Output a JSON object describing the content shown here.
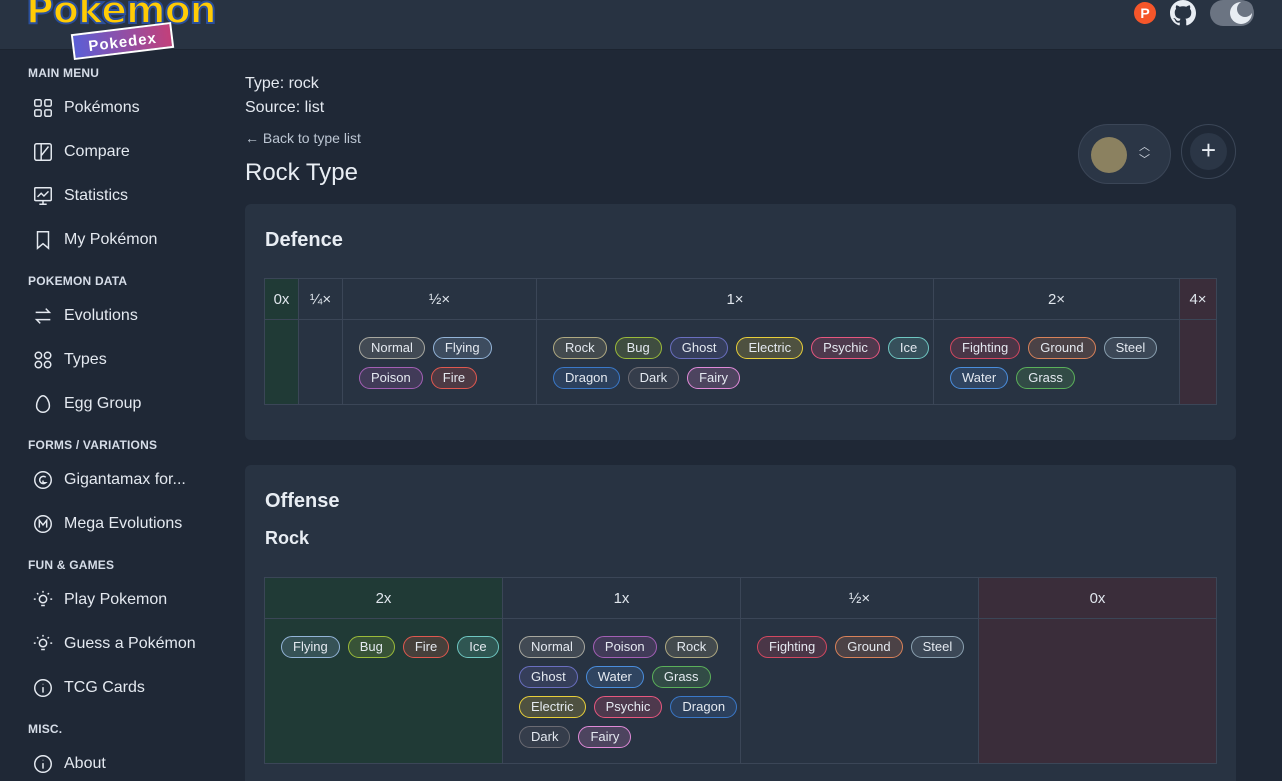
{
  "header": {
    "logo_title": "Pokémon",
    "logo_subtitle": "Pokedex",
    "badge_letter": "P",
    "icons": [
      "patreon-icon",
      "github-icon",
      "theme-toggle"
    ]
  },
  "sidebar": {
    "sections": [
      {
        "label": "MAIN MENU",
        "items": [
          {
            "label": "Pokémons",
            "icon": "grid-icon"
          },
          {
            "label": "Compare",
            "icon": "compare-icon"
          },
          {
            "label": "Statistics",
            "icon": "chart-icon"
          },
          {
            "label": "My Pokémon",
            "icon": "bookmark-icon"
          }
        ]
      },
      {
        "label": "POKEMON DATA",
        "items": [
          {
            "label": "Evolutions",
            "icon": "arrows-icon"
          },
          {
            "label": "Types",
            "icon": "types-icon"
          },
          {
            "label": "Egg Group",
            "icon": "egg-icon"
          }
        ]
      },
      {
        "label": "FORMS / VARIATIONS",
        "items": [
          {
            "label": "Gigantamax for...",
            "icon": "g-icon"
          },
          {
            "label": "Mega Evolutions",
            "icon": "m-icon"
          }
        ]
      },
      {
        "label": "FUN & GAMES",
        "items": [
          {
            "label": "Play Pokemon",
            "icon": "bulb-icon"
          },
          {
            "label": "Guess a Pokémon",
            "icon": "bulb-icon"
          },
          {
            "label": "TCG Cards",
            "icon": "info-icon"
          }
        ]
      },
      {
        "label": "MISC.",
        "items": [
          {
            "label": "About",
            "icon": "info-icon"
          }
        ]
      }
    ]
  },
  "page": {
    "type_line": "Type: rock",
    "source_line": "Source: list",
    "back_link": "← Back to type list",
    "title": "Rock Type",
    "add_label": "+"
  },
  "defence": {
    "title": "Defence",
    "columns": [
      {
        "header": "0x",
        "chips": []
      },
      {
        "header": "¼×",
        "chips": []
      },
      {
        "header": "½×",
        "chips": [
          "Normal",
          "Flying",
          "Poison",
          "Fire"
        ]
      },
      {
        "header": "1×",
        "chips": [
          "Rock",
          "Bug",
          "Ghost",
          "Electric",
          "Psychic",
          "Ice",
          "Dragon",
          "Dark",
          "Fairy"
        ]
      },
      {
        "header": "2×",
        "chips": [
          "Fighting",
          "Ground",
          "Steel",
          "Water",
          "Grass"
        ]
      },
      {
        "header": "4×",
        "chips": []
      }
    ]
  },
  "offense": {
    "title": "Offense",
    "subtitle": "Rock",
    "columns": [
      {
        "header": "2x",
        "chips": [
          "Flying",
          "Bug",
          "Fire",
          "Ice"
        ]
      },
      {
        "header": "1x",
        "chips": [
          "Normal",
          "Poison",
          "Rock",
          "Ghost",
          "Water",
          "Grass",
          "Electric",
          "Psychic",
          "Dragon",
          "Dark",
          "Fairy"
        ]
      },
      {
        "header": "½×",
        "chips": [
          "Fighting",
          "Ground",
          "Steel"
        ]
      },
      {
        "header": "0x",
        "chips": []
      }
    ]
  },
  "type_colors": {
    "Normal": "#a8a8a0",
    "Flying": "#93b4d8",
    "Poison": "#a35fb5",
    "Fire": "#e0584f",
    "Rock": "#b0aa82",
    "Bug": "#9bbb3a",
    "Ghost": "#6a6fc0",
    "Electric": "#e8cf3a",
    "Psychic": "#e8577f",
    "Ice": "#6fc7c2",
    "Dragon": "#3a78c8",
    "Dark": "#6b6b73",
    "Fairy": "#e08ad8",
    "Fighting": "#d34860",
    "Ground": "#d9825a",
    "Steel": "#8aa0b0",
    "Water": "#4a8ddc",
    "Grass": "#5bb05a"
  }
}
